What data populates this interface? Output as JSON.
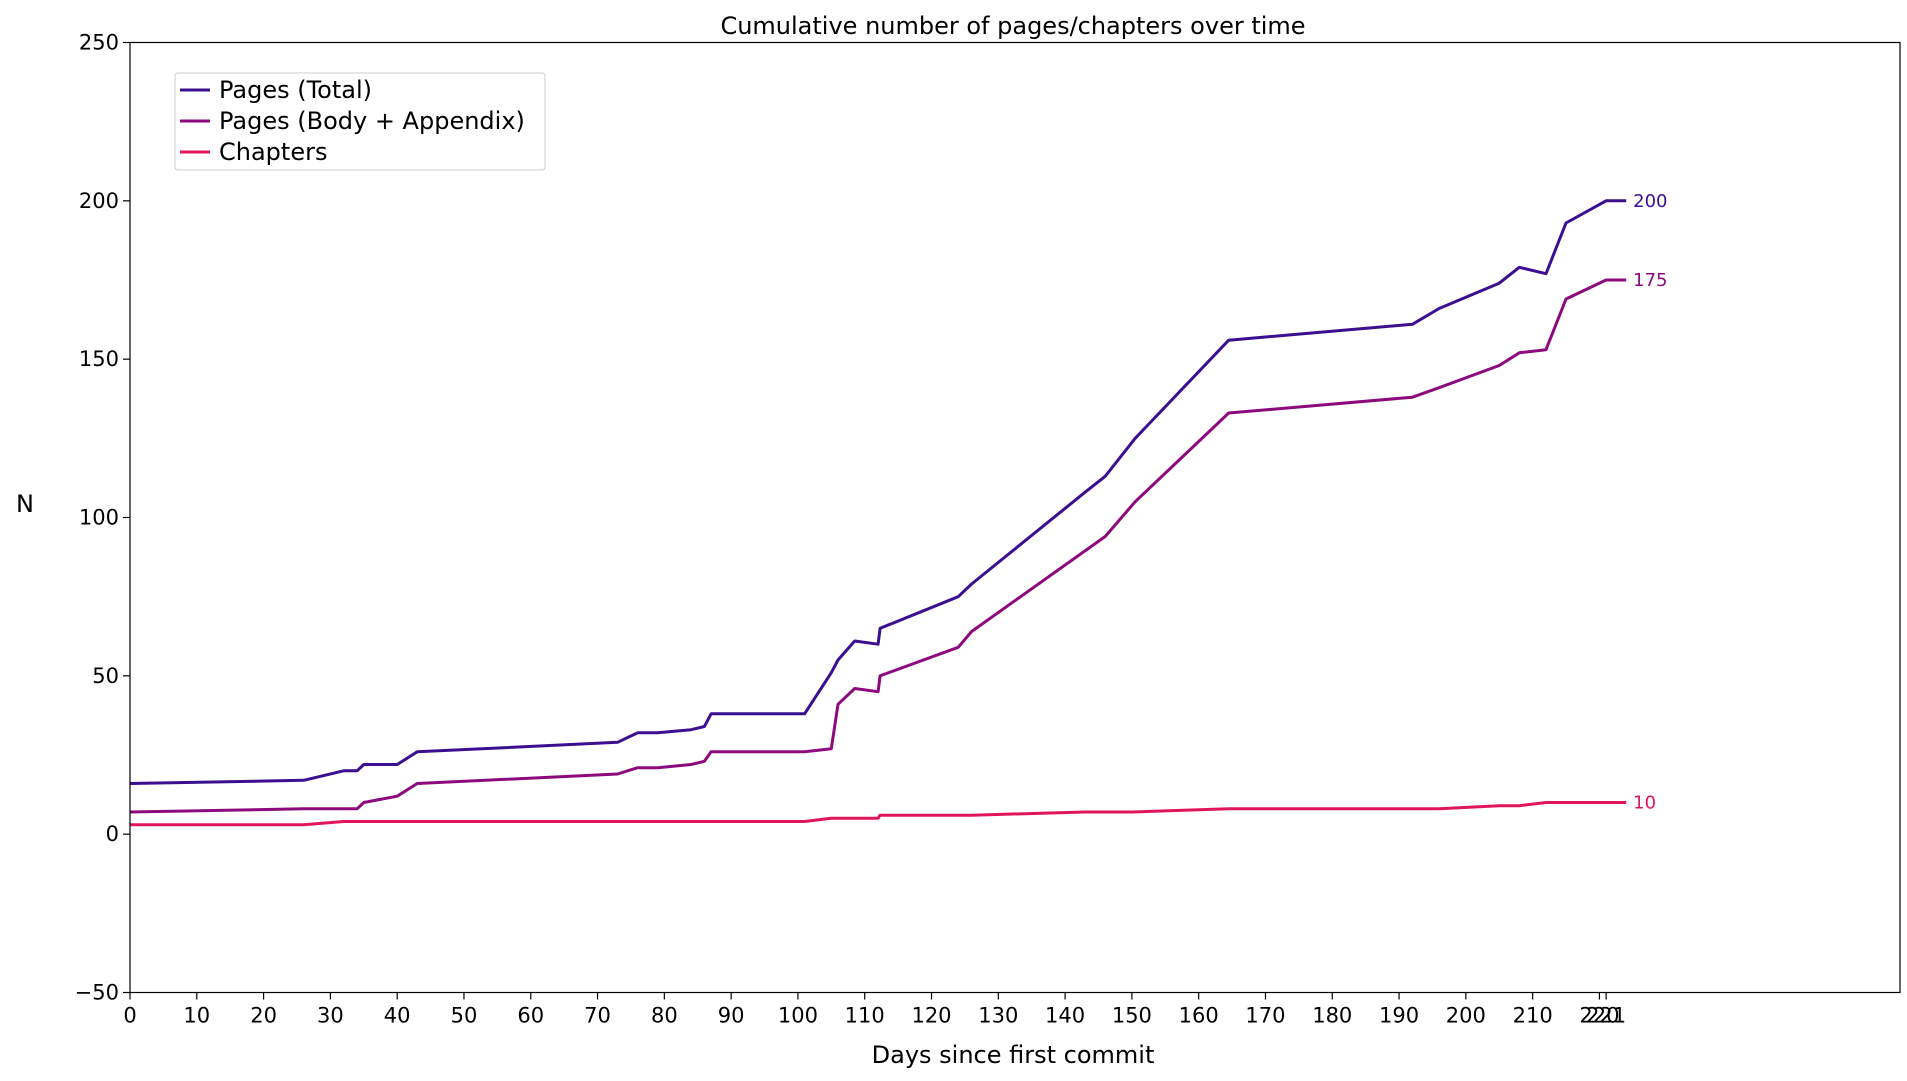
{
  "chart_data": {
    "type": "line",
    "title": "Cumulative number of pages/chapters over time",
    "xlabel": "Days since first commit",
    "ylabel": "N",
    "xlim": [
      0,
      265
    ],
    "ylim": [
      -50,
      250
    ],
    "xticks": [
      0,
      10,
      20,
      30,
      40,
      50,
      60,
      70,
      80,
      90,
      100,
      110,
      120,
      130,
      140,
      150,
      160,
      170,
      180,
      190,
      200,
      210,
      220,
      221
    ],
    "yticks": [
      -50,
      0,
      50,
      100,
      150,
      200,
      250
    ],
    "grid": false,
    "legend_position": "top-left",
    "series": [
      {
        "name": "Pages (Total)",
        "color": "#3b0f8f",
        "end_label": "200",
        "x": [
          0,
          26,
          32,
          34,
          35,
          40,
          43,
          73,
          76,
          79,
          84,
          86,
          87,
          101,
          105,
          106,
          108.5,
          112,
          112.3,
          124,
          126,
          143,
          146,
          150.5,
          164.5,
          192,
          196,
          205,
          208,
          212,
          215,
          221,
          224
        ],
        "y": [
          16,
          17,
          20,
          20,
          22,
          22,
          26,
          29,
          32,
          32,
          33,
          34,
          38,
          38,
          51,
          55,
          61,
          60,
          65,
          75,
          79,
          108,
          113,
          125,
          156,
          161,
          166,
          174,
          179,
          177,
          193,
          200,
          200
        ]
      },
      {
        "name": "Pages (Body + Appendix)",
        "color": "#8c0a7d",
        "end_label": "175",
        "x": [
          0,
          26,
          34,
          35,
          40,
          43,
          73,
          76,
          79,
          84,
          86,
          87,
          101,
          105,
          106,
          108.5,
          112,
          112.3,
          124,
          126,
          146,
          150.5,
          164.5,
          192,
          196,
          205,
          208,
          212,
          215,
          221,
          224
        ],
        "y": [
          7,
          8,
          8,
          10,
          12,
          16,
          19,
          21,
          21,
          22,
          23,
          26,
          26,
          27,
          41,
          46,
          45,
          50,
          59,
          64,
          94,
          105,
          133,
          138,
          141,
          148,
          152,
          153,
          169,
          175,
          175
        ]
      },
      {
        "name": "Chapters",
        "color": "#e0155a",
        "end_label": "10",
        "x": [
          0,
          26,
          32,
          101,
          105,
          112,
          112.3,
          126,
          143,
          150,
          164.5,
          196,
          205,
          208,
          212,
          221,
          224
        ],
        "y": [
          3,
          3,
          4,
          4,
          5,
          5,
          6,
          6,
          7,
          7,
          8,
          8,
          9,
          9,
          10,
          10,
          10
        ]
      }
    ]
  }
}
